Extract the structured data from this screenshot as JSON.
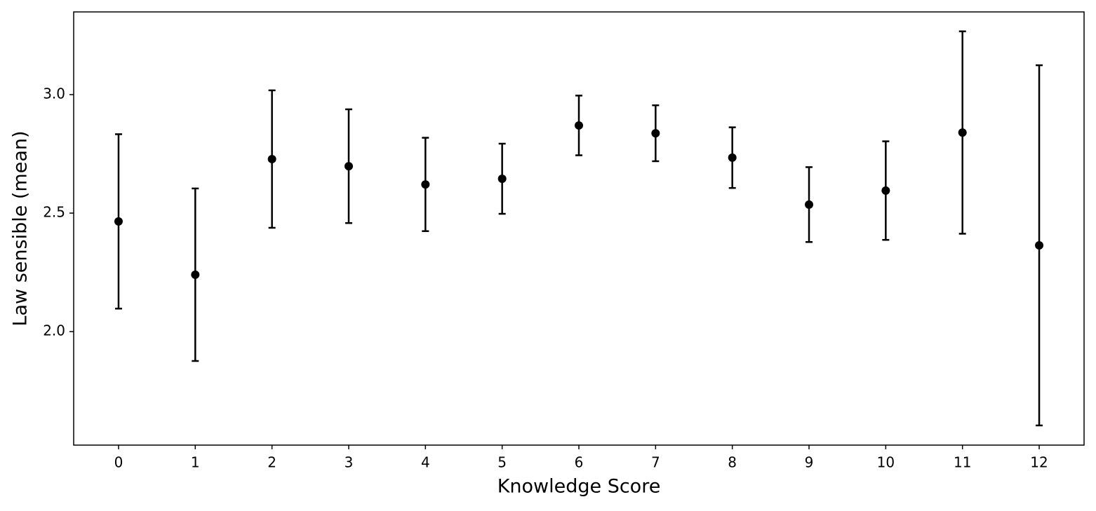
{
  "chart_data": {
    "type": "errorbar",
    "xlabel": "Knowledge Score",
    "ylabel": "Law sensible (mean)",
    "x": [
      0,
      1,
      2,
      3,
      4,
      5,
      6,
      7,
      8,
      9,
      10,
      11,
      12
    ],
    "values": [
      2.465,
      2.24,
      2.728,
      2.698,
      2.621,
      2.645,
      2.87,
      2.837,
      2.734,
      2.536,
      2.595,
      2.84,
      2.364
    ],
    "errors": [
      0.368,
      0.364,
      0.29,
      0.24,
      0.197,
      0.148,
      0.126,
      0.118,
      0.128,
      0.158,
      0.208,
      0.427,
      0.76
    ],
    "color": "#000000",
    "xlim": [
      -0.585,
      12.585
    ],
    "xticks": [
      0,
      1,
      2,
      3,
      4,
      5,
      6,
      7,
      8,
      9,
      10,
      11,
      12
    ],
    "ylim": [
      1.521,
      3.349
    ],
    "yticks": [
      {
        "value": 2.0,
        "label": "2.0"
      },
      {
        "value": 2.5,
        "label": "2.5"
      },
      {
        "value": 3.0,
        "label": "3.0"
      }
    ]
  }
}
